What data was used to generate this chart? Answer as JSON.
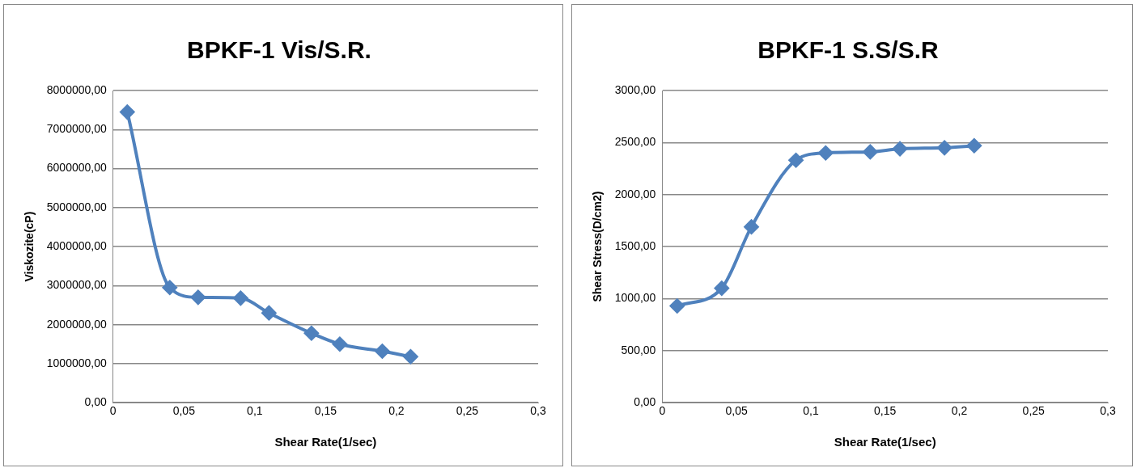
{
  "chart_data": [
    {
      "type": "line",
      "title": "BPKF-1 Vis/S.R.",
      "xlabel": "Shear Rate(1/sec)",
      "ylabel": "Viskozite(cP)",
      "x": [
        0.01,
        0.04,
        0.06,
        0.09,
        0.11,
        0.14,
        0.16,
        0.19,
        0.21
      ],
      "series": [
        {
          "color": "#4f81bd",
          "values": [
            7450000,
            2950000,
            2700000,
            2680000,
            2300000,
            1780000,
            1500000,
            1320000,
            1180000
          ]
        }
      ],
      "xlim": [
        0,
        0.3
      ],
      "xticks": [
        {
          "value": 0,
          "label": "0"
        },
        {
          "value": 0.05,
          "label": "0,05"
        },
        {
          "value": 0.1,
          "label": "0,1"
        },
        {
          "value": 0.15,
          "label": "0,15"
        },
        {
          "value": 0.2,
          "label": "0,2"
        },
        {
          "value": 0.25,
          "label": "0,25"
        },
        {
          "value": 0.3,
          "label": "0,3"
        }
      ],
      "ylim": [
        0,
        8000000
      ],
      "yticks": [
        {
          "value": 0,
          "label": "0,00"
        },
        {
          "value": 1000000,
          "label": "1000000,00"
        },
        {
          "value": 2000000,
          "label": "2000000,00"
        },
        {
          "value": 3000000,
          "label": "3000000,00"
        },
        {
          "value": 4000000,
          "label": "4000000,00"
        },
        {
          "value": 5000000,
          "label": "5000000,00"
        },
        {
          "value": 6000000,
          "label": "6000000,00"
        },
        {
          "value": 7000000,
          "label": "7000000,00"
        },
        {
          "value": 8000000,
          "label": "8000000,00"
        }
      ],
      "grid": "y",
      "legend": false,
      "marker": "diamond",
      "line_style": "solid"
    },
    {
      "type": "line",
      "title": "BPKF-1 S.S/S.R",
      "xlabel": "Shear Rate(1/sec)",
      "ylabel": "Shear Stress(D/cm2)",
      "x": [
        0.01,
        0.04,
        0.06,
        0.09,
        0.11,
        0.14,
        0.16,
        0.19,
        0.21
      ],
      "series": [
        {
          "color": "#4f81bd",
          "values": [
            930,
            1100,
            1690,
            2330,
            2400,
            2410,
            2440,
            2450,
            2470
          ]
        }
      ],
      "xlim": [
        0,
        0.3
      ],
      "xticks": [
        {
          "value": 0,
          "label": "0"
        },
        {
          "value": 0.05,
          "label": "0,05"
        },
        {
          "value": 0.1,
          "label": "0,1"
        },
        {
          "value": 0.15,
          "label": "0,15"
        },
        {
          "value": 0.2,
          "label": "0,2"
        },
        {
          "value": 0.25,
          "label": "0,25"
        },
        {
          "value": 0.3,
          "label": "0,3"
        }
      ],
      "ylim": [
        0,
        3000
      ],
      "yticks": [
        {
          "value": 0,
          "label": "0,00"
        },
        {
          "value": 500,
          "label": "500,00"
        },
        {
          "value": 1000,
          "label": "1000,00"
        },
        {
          "value": 1500,
          "label": "1500,00"
        },
        {
          "value": 2000,
          "label": "2000,00"
        },
        {
          "value": 2500,
          "label": "2500,00"
        },
        {
          "value": 3000,
          "label": "3000,00"
        }
      ],
      "grid": "y",
      "legend": false,
      "marker": "diamond",
      "line_style": "solid"
    }
  ]
}
